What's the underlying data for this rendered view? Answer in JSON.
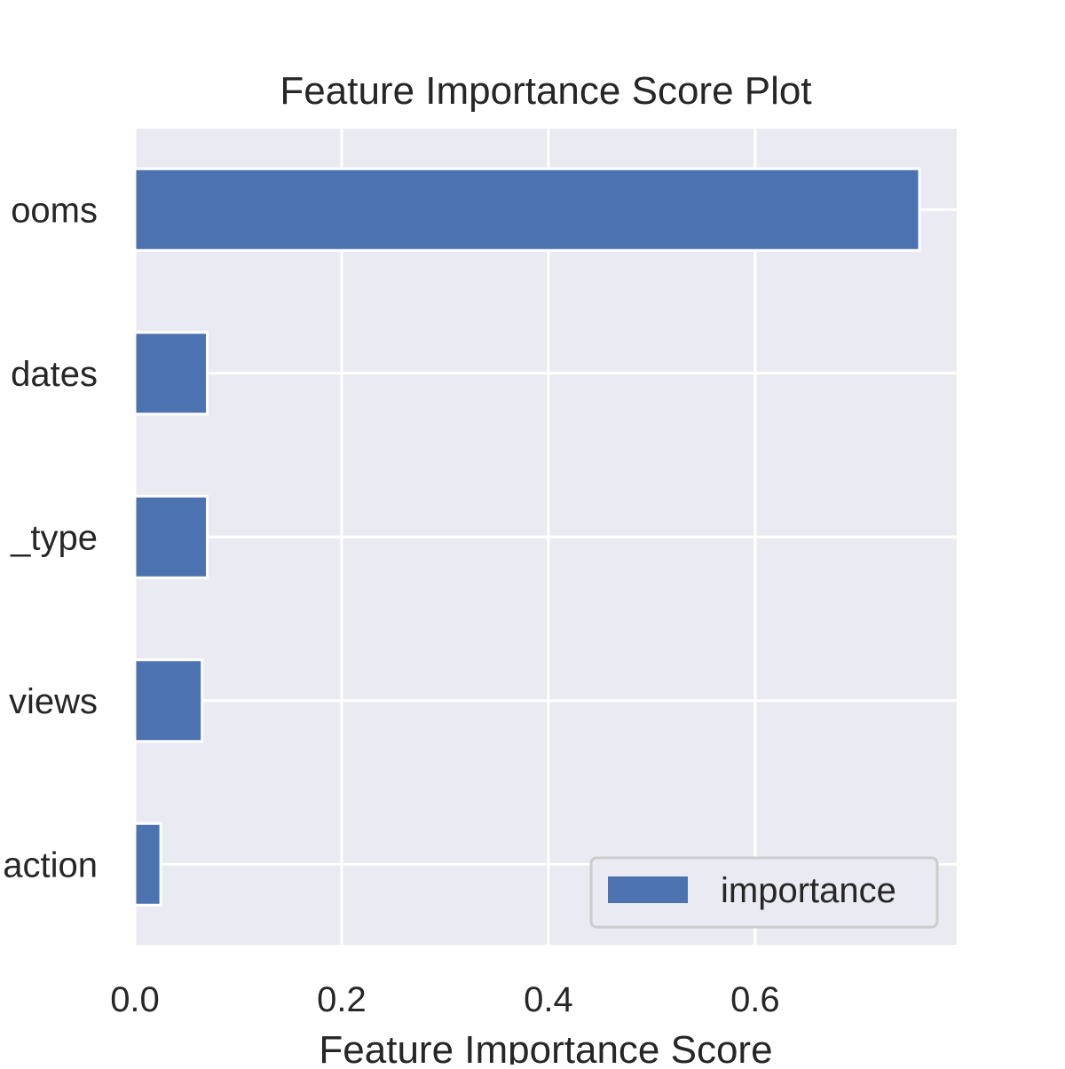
{
  "chart_data": {
    "type": "bar",
    "orientation": "horizontal",
    "title": "Feature Importance Score Plot",
    "xlabel": "Feature Importance Score",
    "ylabel": "",
    "categories": [
      "ooms",
      "dates",
      "_type",
      "views",
      "action"
    ],
    "series": [
      {
        "name": "importance",
        "values": [
          0.759,
          0.07,
          0.07,
          0.065,
          0.025
        ]
      }
    ],
    "xlim": [
      0,
      0.795
    ],
    "xticks": [
      0.0,
      0.2,
      0.4,
      0.6
    ],
    "xtick_labels": [
      "0.0",
      "0.2",
      "0.4",
      "0.6"
    ],
    "grid": true,
    "legend": {
      "position": "bottom-right",
      "entries": [
        "importance"
      ]
    },
    "colors": {
      "bar": "#4c72b0",
      "plot_background": "#eaeaf2",
      "grid": "#ffffff"
    }
  }
}
